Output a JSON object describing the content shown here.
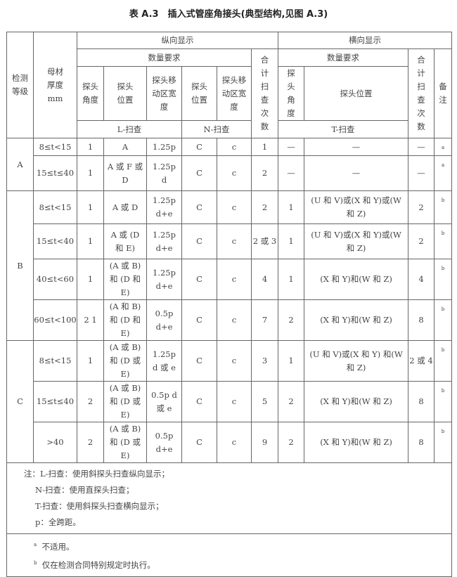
{
  "title": "表 A.3　插入式管座角接头(典型结构,见图 A.3)",
  "header": {
    "grade": "检测等级",
    "thickness": "母材厚度 mm",
    "longitudinal": "纵向显示",
    "transverse": "横向显示",
    "quantity_req": "数量要求",
    "quantity_req_t": "数量要求",
    "probe_angle": "探头角度",
    "probe_position": "探头位置",
    "probe_move": "探头移动区宽度",
    "n_probe_position": "探头位置",
    "n_probe_move": "探头移动区宽度",
    "total_scans": "合计扫查次数",
    "t_probe_angle": "探头角度",
    "t_probe_position": "探头位置",
    "t_total_scans": "合计扫查次数",
    "remarks": "备注",
    "l_scan": "L-扫查",
    "n_scan": "N-扫查",
    "t_scan": "T-扫查"
  },
  "groups": [
    {
      "grade": "A",
      "rows": [
        {
          "t": "8≤t<15",
          "angle": "1",
          "pos": "A",
          "move": "1.25p",
          "npos": "C",
          "nmove": "c",
          "total": "1",
          "tangle": "—",
          "tpos": "—",
          "ttotal": "—",
          "note": "a"
        },
        {
          "t": "15≤t≤40",
          "angle": "1",
          "pos": "A 或 F 或 D",
          "move": "1.25p d",
          "npos": "C",
          "nmove": "c",
          "total": "2",
          "tangle": "—",
          "tpos": "—",
          "ttotal": "—",
          "note": "a"
        }
      ]
    },
    {
      "grade": "B",
      "rows": [
        {
          "t": "8≤t<15",
          "angle": "1",
          "pos": "A 或 D",
          "move": "1.25p d+e",
          "npos": "C",
          "nmove": "c",
          "total": "2",
          "tangle": "1",
          "tpos": "(U 和 V)或(X 和 Y)或(W 和 Z)",
          "ttotal": "2",
          "note": "b"
        },
        {
          "t": "15≤t<40",
          "angle": "1",
          "pos": "A 或 (D 和 E)",
          "move": "1.25p d+e",
          "npos": "C",
          "nmove": "c",
          "total": "2 或 3",
          "tangle": "1",
          "tpos": "(U 和 V)或(X 和 Y)或(W 和 Z)",
          "ttotal": "2",
          "note": "b"
        },
        {
          "t": "40≤t<60",
          "angle": "1",
          "pos": "(A 或 B)和 (D 和 E)",
          "move": "1.25p d+e",
          "npos": "C",
          "nmove": "c",
          "total": "4",
          "tangle": "1",
          "tpos": "(X 和 Y)和(W 和 Z)",
          "ttotal": "4",
          "note": "b"
        },
        {
          "t": "60≤t<100",
          "angle": "2 1",
          "pos": "(A 和 B)和 (D 和 E)",
          "move": "0.5p d+e",
          "npos": "C",
          "nmove": "c",
          "total": "7",
          "tangle": "2",
          "tpos": "(X 和 Y)和(W 和 Z)",
          "ttotal": "8",
          "note": "b"
        }
      ]
    },
    {
      "grade": "C",
      "rows": [
        {
          "t": "8≤t<15",
          "angle": "1",
          "pos": "(A 或 B)和 (D 或 E)",
          "move": "1.25p d 或 e",
          "npos": "C",
          "nmove": "c",
          "total": "3",
          "tangle": "1",
          "tpos": "(U 和 V)或(X 和 Y) 和(W 和 Z)",
          "ttotal": "2 或 4",
          "note": "b"
        },
        {
          "t": "15≤t≤40",
          "angle": "2",
          "pos": "(A 或 B)和 (D 或 E)",
          "move": "0.5p d 或 e",
          "npos": "C",
          "nmove": "c",
          "total": "5",
          "tangle": "2",
          "tpos": "(X 和 Y)和(W 和 Z)",
          "ttotal": "8",
          "note": "b"
        },
        {
          "t": ">40",
          "angle": "2",
          "pos": "(A 或 B)和 (D 或 E)",
          "move": "0.5p d+e",
          "npos": "C",
          "nmove": "c",
          "total": "9",
          "tangle": "2",
          "tpos": "(X 和 Y)和(W 和 Z)",
          "ttotal": "8",
          "note": "b"
        }
      ]
    }
  ],
  "notes": [
    "注：L-扫查：使用斜探头扫查纵向显示；",
    "N-扫查：使用直探头扫查；",
    "T-扫查：使用斜探头扫查横向显示；",
    "p：全跨距。"
  ],
  "footnotes": [
    {
      "mark": "a",
      "text": "不适用。"
    },
    {
      "mark": "b",
      "text": "仅在检测合同特别规定时执行。"
    }
  ]
}
